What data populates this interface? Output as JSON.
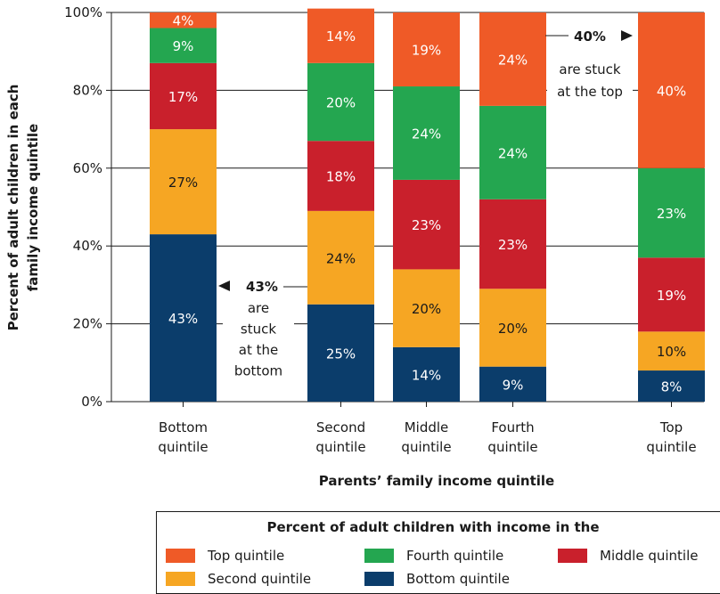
{
  "colors": {
    "top": "#ef5a27",
    "fourth": "#24a650",
    "middle": "#c9202c",
    "second": "#f6a623",
    "bottom": "#0b3d6b",
    "axis": "#1a1a1a",
    "grid": "#1a1a1a"
  },
  "chart_data": {
    "type": "bar",
    "stacked": true,
    "categories": [
      "Bottom quintile",
      "Second quintile",
      "Middle quintile",
      "Fourth quintile",
      "Top quintile"
    ],
    "category_lines": [
      [
        "Bottom",
        "quintile"
      ],
      [
        "Second",
        "quintile"
      ],
      [
        "Middle",
        "quintile"
      ],
      [
        "Fourth",
        "quintile"
      ],
      [
        "Top",
        "quintile"
      ]
    ],
    "series": [
      {
        "name": "Bottom quintile",
        "key": "bottom",
        "values": [
          43,
          25,
          14,
          9,
          8
        ],
        "labels": [
          "43%",
          "25%",
          "14%",
          "9%",
          "8%"
        ]
      },
      {
        "name": "Second quintile",
        "key": "second",
        "values": [
          27,
          24,
          20,
          20,
          10
        ],
        "labels": [
          "27%",
          "24%",
          "20%",
          "20%",
          "10%"
        ]
      },
      {
        "name": "Middle quintile",
        "key": "middle",
        "values": [
          17,
          18,
          23,
          23,
          19
        ],
        "labels": [
          "17%",
          "18%",
          "23%",
          "23%",
          "19%"
        ]
      },
      {
        "name": "Fourth quintile",
        "key": "fourth",
        "values": [
          9,
          20,
          24,
          24,
          23
        ],
        "labels": [
          "9%",
          "20%",
          "24%",
          "24%",
          "23%"
        ]
      },
      {
        "name": "Top quintile",
        "key": "top",
        "values": [
          4,
          14,
          19,
          24,
          40
        ],
        "labels": [
          "4%",
          "14%",
          "19%",
          "24%",
          "40%"
        ]
      }
    ],
    "ylim": [
      0,
      100
    ],
    "yticks": [
      0,
      20,
      40,
      60,
      80,
      100
    ],
    "ytick_labels": [
      "0%",
      "20%",
      "40%",
      "60%",
      "80%",
      "100%"
    ],
    "ylabel_lines": [
      "Percent of adult children in each",
      "family income quintile"
    ],
    "xlabel": "Parents’ family income quintile",
    "grid": true,
    "annotations": {
      "bottom": {
        "bold": "43%",
        "lines": [
          "are",
          "stuck",
          "at the",
          "bottom"
        ]
      },
      "top": {
        "bold": "40%",
        "lines": [
          "are stuck",
          "at the top"
        ]
      }
    }
  },
  "legend": {
    "title": "Percent of adult children with income in the",
    "items": [
      {
        "label": "Top quintile",
        "key": "top"
      },
      {
        "label": "Fourth quintile",
        "key": "fourth"
      },
      {
        "label": "Middle quintile",
        "key": "middle"
      },
      {
        "label": "Second quintile",
        "key": "second"
      },
      {
        "label": "Bottom quintile",
        "key": "bottom"
      }
    ]
  }
}
